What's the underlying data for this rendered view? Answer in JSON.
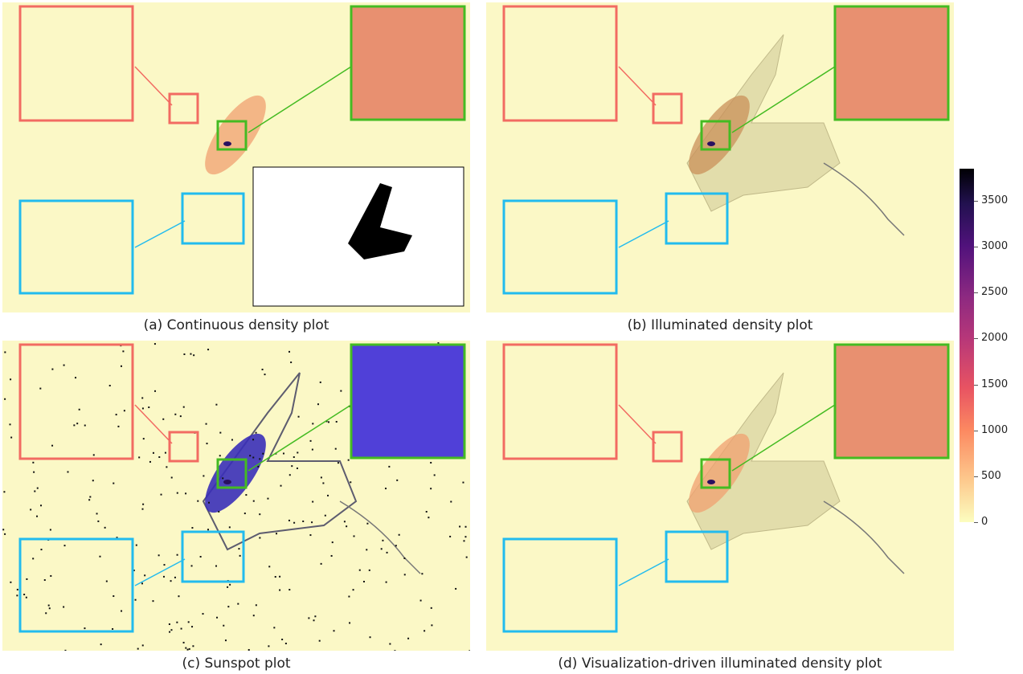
{
  "chart_data": {
    "type": "heatmap",
    "panels": [
      {
        "id": "a",
        "caption": "(a) Continuous density plot",
        "style": "continuous",
        "has_binary_inset": true
      },
      {
        "id": "b",
        "caption": "(b) Illuminated density plot",
        "style": "illuminated"
      },
      {
        "id": "c",
        "caption": "(c) Sunspot plot",
        "style": "sunspot"
      },
      {
        "id": "d",
        "caption": "(d) Visualization-driven illuminated density plot",
        "style": "vis-driven"
      }
    ],
    "colorbar": {
      "colormap": "magma",
      "range": [
        0,
        3850
      ],
      "ticks": [
        0,
        500,
        1000,
        1500,
        2000,
        2500,
        3000,
        3500
      ]
    },
    "colors": {
      "inset_red": "#f26b62",
      "inset_green": "#44bb22",
      "inset_blue": "#22bbee",
      "background": "#fbf8c6"
    }
  }
}
